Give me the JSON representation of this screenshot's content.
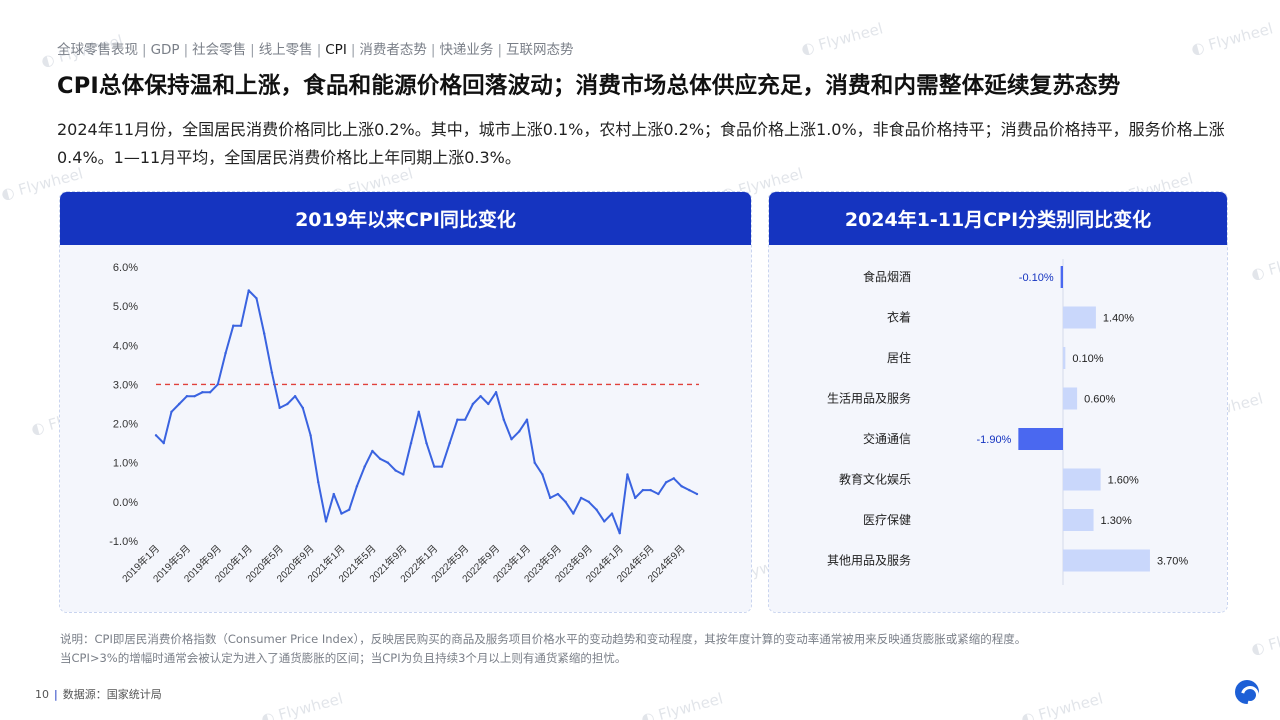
{
  "nav": [
    {
      "label": "全球零售表现",
      "active": false
    },
    {
      "label": "GDP",
      "active": false
    },
    {
      "label": "社会零售",
      "active": false
    },
    {
      "label": "线上零售",
      "active": false
    },
    {
      "label": "CPI",
      "active": true
    },
    {
      "label": "消费者态势",
      "active": false
    },
    {
      "label": "快递业务",
      "active": false
    },
    {
      "label": "互联网态势",
      "active": false
    }
  ],
  "nav_separator": "|",
  "headline": "CPI总体保持温和上涨，食品和能源价格回落波动；消费市场总体供应充足，消费和内需整体延续复苏态势",
  "summary": "2024年11月份，全国居民消费价格同比上涨0.2%。其中，城市上涨0.1%，农村上涨0.2%；食品价格上涨1.0%，非食品价格持平；消费品价格持平，服务价格上涨0.4%。1—11月平均，全国居民消费价格比上年同期上涨0.3%。",
  "watermark": "Flywheel",
  "colors": {
    "accent": "#1534c0",
    "line": "#3a63e0",
    "threshold": "#e0413a",
    "bar_pos": "#c9d7fb",
    "bar_neg": "#4a68f0"
  },
  "chart_data": [
    {
      "type": "line",
      "title": "2019年以来CPI同比变化",
      "y_tick_labels": [
        "6.0%",
        "5.0%",
        "4.0%",
        "3.0%",
        "2.0%",
        "1.0%",
        "0.0%",
        "-1.0%"
      ],
      "ylim": [
        -1.0,
        6.0
      ],
      "x_tick_labels": [
        "2019年1月",
        "2019年5月",
        "2019年9月",
        "2020年1月",
        "2020年5月",
        "2020年9月",
        "2021年1月",
        "2021年5月",
        "2021年9月",
        "2022年1月",
        "2022年5月",
        "2022年9月",
        "2023年1月",
        "2023年5月",
        "2023年9月",
        "2024年1月",
        "2024年5月",
        "2024年9月"
      ],
      "threshold": 3.0,
      "grid": false,
      "series": [
        {
          "values": [
            1.7,
            1.5,
            2.3,
            2.5,
            2.7,
            2.7,
            2.8,
            2.8,
            3.0,
            3.8,
            4.5,
            4.5,
            5.4,
            5.2,
            4.3,
            3.3,
            2.4,
            2.5,
            2.7,
            2.4,
            1.7,
            0.5,
            -0.5,
            0.2,
            -0.3,
            -0.2,
            0.4,
            0.9,
            1.3,
            1.1,
            1.0,
            0.8,
            0.7,
            1.5,
            2.3,
            1.5,
            0.9,
            0.9,
            1.5,
            2.1,
            2.1,
            2.5,
            2.7,
            2.5,
            2.8,
            2.1,
            1.6,
            1.8,
            2.1,
            1.0,
            0.7,
            0.1,
            0.2,
            0.0,
            -0.3,
            0.1,
            0.0,
            -0.2,
            -0.5,
            -0.3,
            -0.8,
            0.7,
            0.1,
            0.3,
            0.3,
            0.2,
            0.5,
            0.6,
            0.4,
            0.3,
            0.2
          ]
        }
      ]
    },
    {
      "type": "bar",
      "orientation": "horizontal",
      "title": "2024年1-11月CPI分类别同比变化",
      "categories": [
        "食品烟酒",
        "衣着",
        "居住",
        "生活用品及服务",
        "交通通信",
        "教育文化娱乐",
        "医疗保健",
        "其他用品及服务"
      ],
      "values": [
        -0.1,
        1.4,
        0.1,
        0.6,
        -1.9,
        1.6,
        1.3,
        3.7
      ],
      "labels": [
        "-0.10%",
        "1.40%",
        "0.10%",
        "0.60%",
        "-1.90%",
        "1.60%",
        "1.30%",
        "3.70%"
      ]
    }
  ],
  "note_lines": [
    "说明：CPI即居民消费价格指数（Consumer Price Index），反映居民购买的商品及服务项目价格水平的变动趋势和变动程度，其按年度计算的变动率通常被用来反映通货膨胀或紧缩的程度。",
    "当CPI>3%的增幅时通常会被认定为进入了通货膨胀的区间；当CPI为负且持续3个月以上则有通货紧缩的担忧。"
  ],
  "footer": {
    "page": "10",
    "separator": "|",
    "source": "数据源：国家统计局"
  }
}
